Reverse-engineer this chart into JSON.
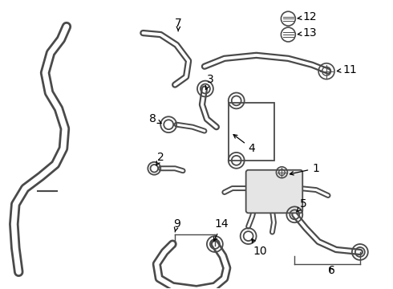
{
  "background_color": "#ffffff",
  "line_color": "#4a4a4a",
  "label_color": "#000000",
  "fig_width": 4.9,
  "fig_height": 3.6,
  "dpi": 100
}
